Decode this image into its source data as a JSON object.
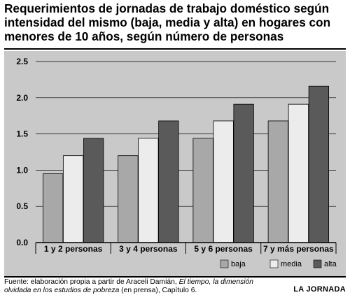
{
  "title": "Requerimientos de jornadas de trabajo doméstico según intensidad del mismo (baja, media y alta) en hogares con menores de 10 años, según número de personas",
  "colors": {
    "panel": "#c9c9c9",
    "baja": "#a8a8a8",
    "media": "#ececec",
    "alta": "#5a5a5a",
    "grid": "#000000"
  },
  "chart_data": {
    "type": "bar",
    "categories": [
      "1 y 2 personas",
      "3 y 4 personas",
      "5 y 6 personas",
      "7 y más personas"
    ],
    "series": [
      {
        "name": "baja",
        "values": [
          0.95,
          1.2,
          1.44,
          1.68
        ]
      },
      {
        "name": "media",
        "values": [
          1.2,
          1.44,
          1.68,
          1.91
        ]
      },
      {
        "name": "alta",
        "values": [
          1.44,
          1.68,
          1.91,
          2.16
        ]
      }
    ],
    "yticks": [
      "0.0",
      "0.5",
      "1.0",
      "1.5",
      "2.0",
      "2.5"
    ],
    "ylim": [
      0,
      2.5
    ],
    "grid": true,
    "legend_position": "bottom-right"
  },
  "footer": {
    "line1_plain": "Fuente: elaboración propia a partir de Araceli Damián, ",
    "line1_italic": "El tiempo, la dimensión",
    "line2_italic": "olvidada en los estudios de pobreza",
    "line2_plain": " (en prensa), Capítulo 6."
  },
  "brand": "LA JORNADA"
}
